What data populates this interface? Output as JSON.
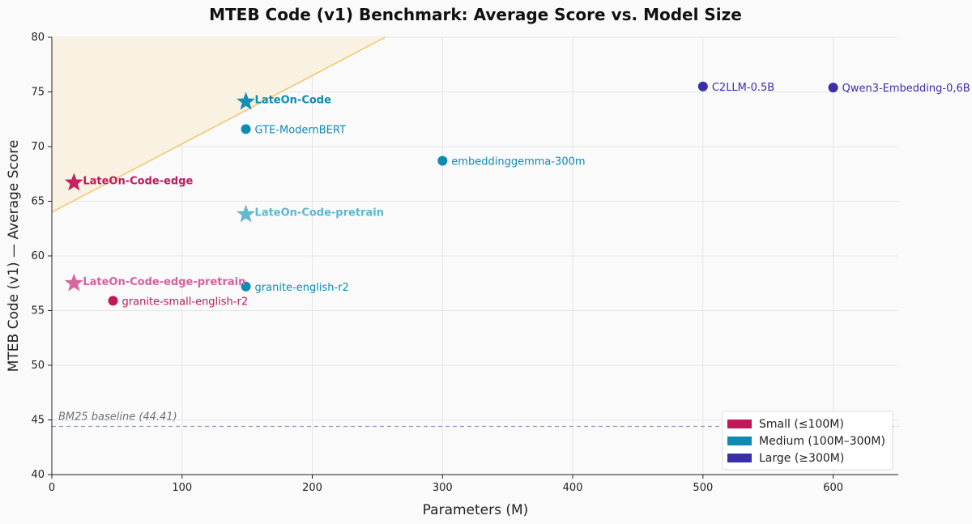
{
  "chart_data": {
    "type": "scatter",
    "title": "MTEB Code (v1) Benchmark: Average Score vs. Model Size",
    "xlabel": "Parameters (M)",
    "ylabel": "MTEB Code (v1) — Average Score",
    "xlim": [
      0,
      650
    ],
    "ylim": [
      40,
      80
    ],
    "xticks": [
      0,
      100,
      200,
      300,
      400,
      500,
      600
    ],
    "yticks": [
      40,
      45,
      50,
      55,
      60,
      65,
      70,
      75,
      80
    ],
    "grid": true,
    "legend_position": "bottom-right",
    "categories": [
      {
        "name": "Small (≤100M)",
        "color": "#c2185b"
      },
      {
        "name": "Medium (100M–300M)",
        "color": "#0e8ab5"
      },
      {
        "name": "Large (≥300M)",
        "color": "#3a2fa8"
      }
    ],
    "points": [
      {
        "label": "LateOn-Code",
        "x": 149,
        "y": 74.1,
        "marker": "star",
        "color": "#0e8ab5",
        "bold": true
      },
      {
        "label": "GTE-ModernBERT",
        "x": 149,
        "y": 71.6,
        "marker": "circle",
        "color": "#0e8ab5",
        "bold": false
      },
      {
        "label": "LateOn-Code-pretrain",
        "x": 149,
        "y": 63.8,
        "marker": "star",
        "color": "#5fb5cf",
        "bold": true
      },
      {
        "label": "granite-english-r2",
        "x": 149,
        "y": 57.2,
        "marker": "circle",
        "color": "#0e8ab5",
        "bold": false
      },
      {
        "label": "LateOn-Code-edge",
        "x": 17,
        "y": 66.7,
        "marker": "star",
        "color": "#c2185b",
        "bold": true
      },
      {
        "label": "LateOn-Code-edge-pretrain",
        "x": 17,
        "y": 57.5,
        "marker": "star",
        "color": "#d6609a",
        "bold": true
      },
      {
        "label": "granite-small-english-r2",
        "x": 47,
        "y": 55.9,
        "marker": "circle",
        "color": "#c2185b",
        "bold": false
      },
      {
        "label": "embeddinggemma-300m",
        "x": 300,
        "y": 68.7,
        "marker": "circle",
        "color": "#0e8ab5",
        "bold": false
      },
      {
        "label": "C2LLM-0.5B",
        "x": 500,
        "y": 75.5,
        "marker": "circle",
        "color": "#3a2fa8",
        "bold": false
      },
      {
        "label": "Qwen3-Embedding-0,6B",
        "x": 600,
        "y": 75.4,
        "marker": "circle",
        "color": "#3a2fa8",
        "bold": false
      }
    ],
    "baseline": {
      "label": "BM25 baseline (44.41)",
      "value": 44.41,
      "color": "#8a9cc9"
    },
    "frontier": {
      "x_start": 0,
      "y_start": 64.0,
      "x_end": 256,
      "y_end": 80,
      "line_color": "#f2c56b",
      "fill_color": "#f8f1df"
    }
  }
}
